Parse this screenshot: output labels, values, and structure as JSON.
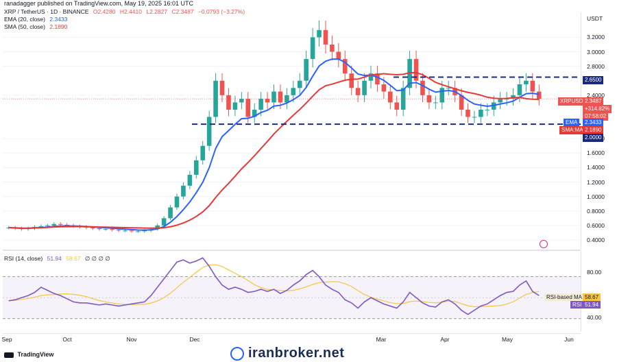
{
  "header": {
    "published": "ranadagger published on TradingView.com, May 19, 2025 16:01 UTC"
  },
  "symbol_line": {
    "title": "XRP / TetherUS · 1D · BINANCE",
    "open": "O2.4280",
    "high": "H2.4410",
    "low": "L2.2827",
    "close": "C2.3487",
    "change": "−0.0793 (−3.27%)"
  },
  "ema_legend": {
    "label": "EMA (20, close)",
    "value": "2.3433"
  },
  "sma_legend": {
    "label": "SMA (50, close)",
    "value": "2.1890"
  },
  "rsi_legend": {
    "label": "RSI (14, close)",
    "v1": "51.94",
    "v2": "58.67",
    "extra": "∅ ∅ ∅ ∅"
  },
  "price_axis": {
    "currency": "USDT",
    "ticks": [
      "3.2000",
      "3.0000",
      "2.8000",
      "2.4000",
      "1.8000",
      "1.6000",
      "1.4000",
      "1.2000",
      "1.0000",
      "0.8000",
      "0.6000",
      "0.4000"
    ]
  },
  "rsi_axis": {
    "ticks": [
      "80.00",
      "40.00"
    ]
  },
  "price_tags": {
    "resistance": "2.6500",
    "symbol": "XRPUSDT",
    "last": "2.3487",
    "change_pct": "+314.82%",
    "countdown": "07:58:02",
    "ema_label": "EMA",
    "ema_value": "2.3433",
    "sma_label": "SMA:MA",
    "sma_value": "2.1890",
    "support": "2.0000"
  },
  "rsi_tags": {
    "ma_label": "RSI-based MA",
    "ma_value": "58.67",
    "rsi_label": "RSI",
    "rsi_value": "51.94"
  },
  "time_axis": {
    "labels": [
      "Sep",
      "Oct",
      "Nov",
      "Dec",
      "Mar",
      "Apr",
      "May",
      "Jun"
    ]
  },
  "footer": {
    "brand": "TradingView",
    "watermark": "iranbroker.net"
  },
  "colors": {
    "up": "#26a69a",
    "down": "#ef5350",
    "ema": "#2962ff",
    "sma": "#e53935",
    "rsi": "#7e57c2",
    "rsi_ma": "#f5c542",
    "level": "#1a2a7a"
  },
  "chart_data": {
    "type": "candlestick",
    "levels": [
      2.65,
      2.0
    ],
    "price_range": [
      0.4,
      3.45
    ],
    "close_series": [
      0.57,
      0.56,
      0.55,
      0.56,
      0.58,
      0.59,
      0.6,
      0.62,
      0.61,
      0.6,
      0.59,
      0.58,
      0.57,
      0.56,
      0.55,
      0.55,
      0.54,
      0.53,
      0.53,
      0.52,
      0.52,
      0.53,
      0.55,
      0.6,
      0.7,
      0.85,
      1.0,
      1.15,
      1.3,
      1.5,
      1.7,
      2.1,
      2.6,
      2.4,
      2.2,
      2.3,
      2.35,
      2.1,
      2.2,
      2.35,
      2.3,
      2.45,
      2.3,
      2.4,
      2.5,
      2.6,
      2.9,
      3.2,
      3.3,
      3.1,
      3.0,
      2.9,
      2.7,
      2.5,
      2.4,
      2.6,
      2.7,
      2.55,
      2.45,
      2.3,
      2.2,
      2.5,
      2.9,
      2.6,
      2.4,
      2.3,
      2.3,
      2.5,
      2.5,
      2.4,
      2.2,
      2.1,
      2.1,
      2.2,
      2.2,
      2.3,
      2.35,
      2.35,
      2.4,
      2.55,
      2.6,
      2.45,
      2.35
    ],
    "rsi": {
      "levels": [
        70,
        30
      ],
      "range": [
        20,
        92
      ],
      "values": [
        47,
        48,
        50,
        52,
        55,
        60,
        57,
        54,
        52,
        49,
        46,
        45,
        45,
        44,
        43,
        44,
        43,
        42,
        43,
        44,
        45,
        46,
        52,
        60,
        68,
        76,
        84,
        86,
        83,
        85,
        88,
        80,
        70,
        62,
        58,
        60,
        58,
        55,
        56,
        58,
        56,
        58,
        54,
        57,
        62,
        66,
        72,
        76,
        70,
        62,
        58,
        55,
        48,
        45,
        40,
        46,
        50,
        47,
        44,
        42,
        40,
        46,
        55,
        50,
        45,
        42,
        41,
        46,
        48,
        44,
        38,
        34,
        38,
        42,
        44,
        48,
        52,
        55,
        56,
        62,
        66,
        56,
        52
      ]
    }
  }
}
